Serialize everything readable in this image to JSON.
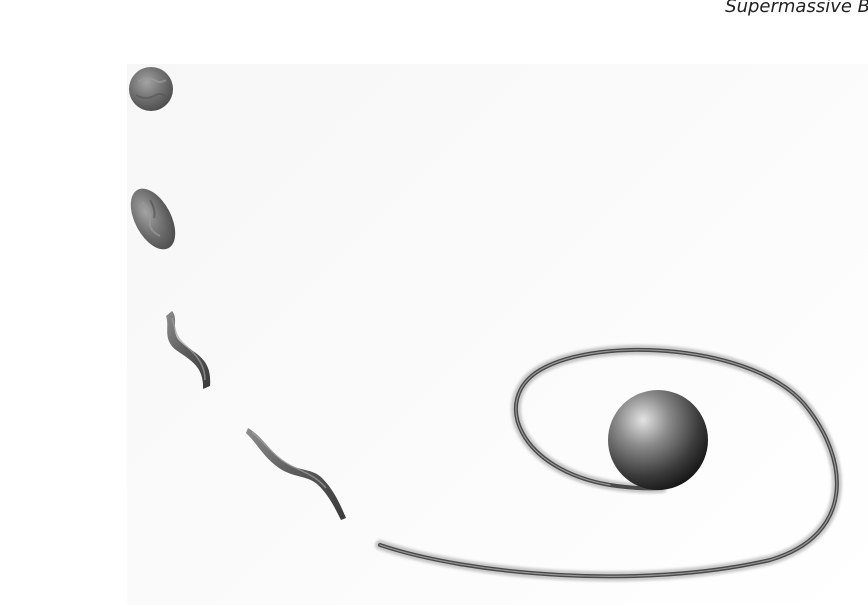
{
  "header": {
    "running_title": "Supermassive B"
  },
  "figure": {
    "colors": {
      "star_gas": "#6e6e6e",
      "stream_dark": "#3f3f3f",
      "black_hole_light": "#d8d8d8",
      "black_hole_dark": "#1c1c1c",
      "panel_background": "#f8f8f8"
    }
  }
}
